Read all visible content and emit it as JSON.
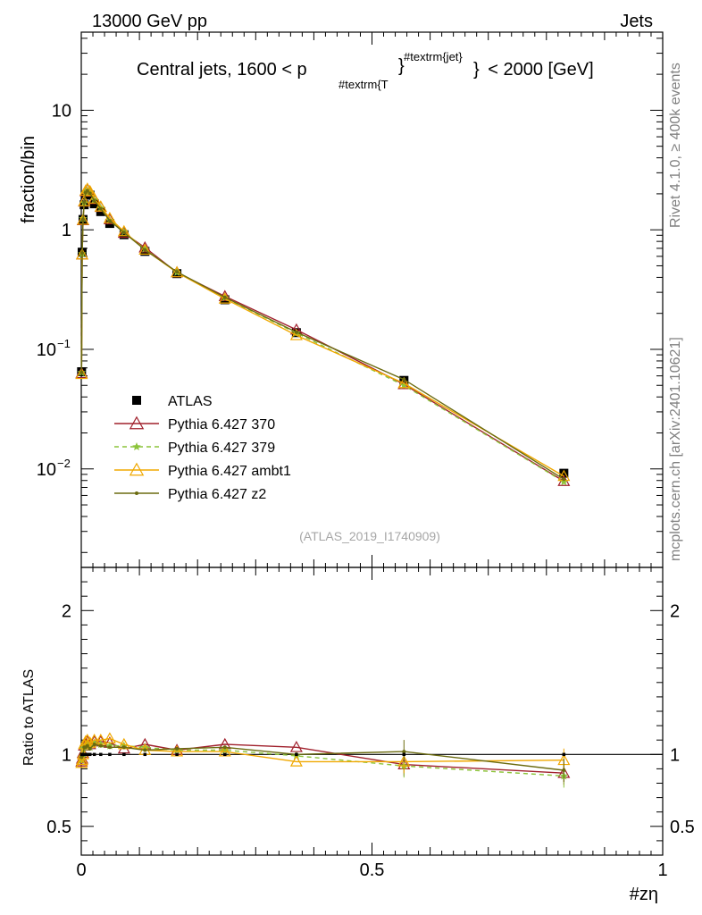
{
  "header": {
    "left": "13000 GeV pp",
    "right": "Jets"
  },
  "side_labels": {
    "rivet": "Rivet 4.1.0, ≥ 400k events",
    "mcplots": "mcplots.cern.ch [arXiv:2401.10621]"
  },
  "colors": {
    "atlas": "#000000",
    "p370": "#a0202c",
    "p379": "#8cc43a",
    "ambt1": "#f0a800",
    "z2": "#6b6b10"
  },
  "chart_data": [
    {
      "type": "line",
      "title": "Central jets, 1600 < p_{#textrm{T}}^{#textrm{jet}} < 2000 [GeV]",
      "title_parts": {
        "pre": "Central jets, 1600 < p",
        "sub": "#textrm{T",
        "sub_close": "}",
        "sup": "#textrm{jet}",
        "post": "< 2000 [GeV]"
      },
      "xlabel": "#zη",
      "ylabel": "fraction/bin",
      "yscale": "log",
      "xlim": [
        0,
        1
      ],
      "ylim": [
        0.0015,
        45
      ],
      "x_ticks": [
        "0",
        "0.5",
        "1"
      ],
      "y_ticks": [
        {
          "value": 10,
          "label": "10",
          "sup": ""
        },
        {
          "value": 1,
          "label": "1",
          "sup": ""
        },
        {
          "value": 0.1,
          "label": "10",
          "sup": "−1"
        },
        {
          "value": 0.01,
          "label": "10",
          "sup": "−2"
        }
      ],
      "watermark": "(ATLAS_2019_I1740909)",
      "x": [
        0.0005,
        0.0015,
        0.003,
        0.005,
        0.0075,
        0.0105,
        0.015,
        0.0225,
        0.0335,
        0.049,
        0.0735,
        0.1095,
        0.1645,
        0.247,
        0.37,
        0.555,
        0.83
      ],
      "series": [
        {
          "name": "ATLAS",
          "values": [
            0.065,
            0.65,
            1.22,
            1.62,
            1.95,
            2.0,
            1.95,
            1.65,
            1.42,
            1.13,
            0.91,
            0.66,
            0.43,
            0.26,
            0.138,
            0.055,
            0.0092
          ]
        },
        {
          "name": "Pythia 6.427 370",
          "values": [
            0.063,
            0.62,
            1.2,
            1.72,
            2.1,
            2.18,
            2.08,
            1.8,
            1.55,
            1.22,
            0.94,
            0.71,
            0.44,
            0.278,
            0.146,
            0.051,
            0.0079
          ]
        },
        {
          "name": "Pythia 6.427 379",
          "values": [
            0.064,
            0.63,
            1.24,
            1.68,
            2.06,
            2.14,
            2.04,
            1.78,
            1.52,
            1.2,
            0.96,
            0.69,
            0.44,
            0.27,
            0.137,
            0.05,
            0.0078
          ]
        },
        {
          "name": "Pythia 6.427 ambt1",
          "values": [
            0.062,
            0.62,
            1.21,
            1.73,
            2.12,
            2.2,
            2.1,
            1.82,
            1.56,
            1.25,
            0.97,
            0.68,
            0.44,
            0.265,
            0.131,
            0.052,
            0.0087
          ]
        },
        {
          "name": "Pythia 6.427 z2",
          "values": [
            0.064,
            0.64,
            1.22,
            1.7,
            2.05,
            2.12,
            2.02,
            1.76,
            1.5,
            1.19,
            0.95,
            0.68,
            0.445,
            0.272,
            0.139,
            0.056,
            0.0082
          ]
        }
      ]
    },
    {
      "type": "line",
      "title": "",
      "xlabel": "#zη",
      "ylabel": "Ratio to ATLAS",
      "xlim": [
        0,
        1
      ],
      "ylim": [
        0.3,
        2.3
      ],
      "y_ticks": [
        "2",
        "1",
        "0.5"
      ],
      "x": [
        0.0005,
        0.0015,
        0.003,
        0.005,
        0.0075,
        0.0105,
        0.015,
        0.0225,
        0.0335,
        0.049,
        0.0735,
        0.1095,
        0.1645,
        0.247,
        0.37,
        0.555,
        0.83
      ],
      "series": [
        {
          "name": "Pythia 6.427 370",
          "values": [
            0.95,
            0.97,
            1.01,
            1.06,
            1.08,
            1.09,
            1.07,
            1.09,
            1.09,
            1.08,
            1.04,
            1.07,
            1.03,
            1.07,
            1.05,
            0.93,
            0.87
          ]
        },
        {
          "name": "Pythia 6.427 379",
          "values": [
            0.96,
            0.98,
            1.04,
            1.05,
            1.06,
            1.07,
            1.05,
            1.08,
            1.07,
            1.06,
            1.06,
            1.05,
            1.03,
            1.03,
            0.99,
            0.92,
            0.85
          ]
        },
        {
          "name": "Pythia 6.427 ambt1",
          "values": [
            0.94,
            0.96,
            1.0,
            1.07,
            1.09,
            1.1,
            1.08,
            1.1,
            1.1,
            1.11,
            1.07,
            1.03,
            1.02,
            1.02,
            0.95,
            0.95,
            0.96
          ]
        },
        {
          "name": "Pythia 6.427 z2",
          "values": [
            0.98,
            0.99,
            1.0,
            1.05,
            1.05,
            1.06,
            1.04,
            1.07,
            1.06,
            1.05,
            1.05,
            1.03,
            1.04,
            1.05,
            1.0,
            1.02,
            0.89
          ]
        }
      ]
    }
  ]
}
